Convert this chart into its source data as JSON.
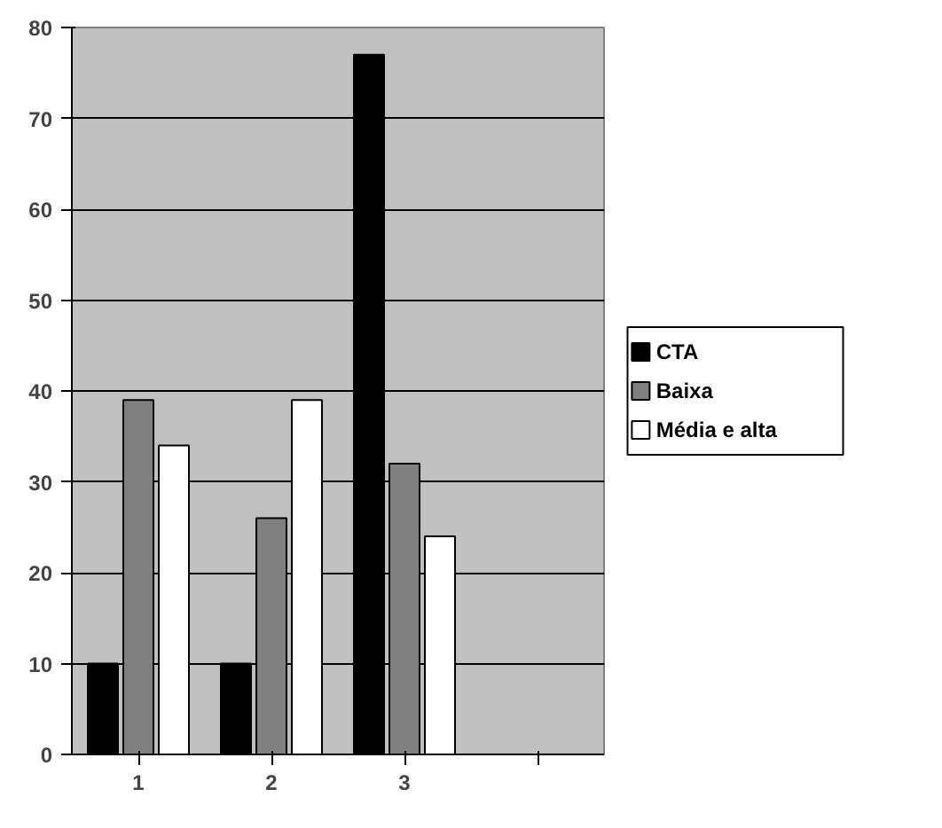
{
  "chart_data": {
    "type": "bar",
    "categories": [
      "1",
      "2",
      "3",
      null
    ],
    "series": [
      {
        "name": "CTA",
        "color": "#000000",
        "values": [
          10,
          10,
          77,
          null
        ]
      },
      {
        "name": "Baixa",
        "color": "#808080",
        "values": [
          39,
          26,
          32,
          null
        ]
      },
      {
        "name": "Média e alta",
        "color": "#ffffff",
        "values": [
          34,
          39,
          24,
          null
        ]
      }
    ],
    "ylim": [
      0,
      80
    ],
    "yticks": [
      0,
      10,
      20,
      30,
      40,
      50,
      60,
      70,
      80
    ],
    "grid": "y",
    "legend": "right"
  }
}
